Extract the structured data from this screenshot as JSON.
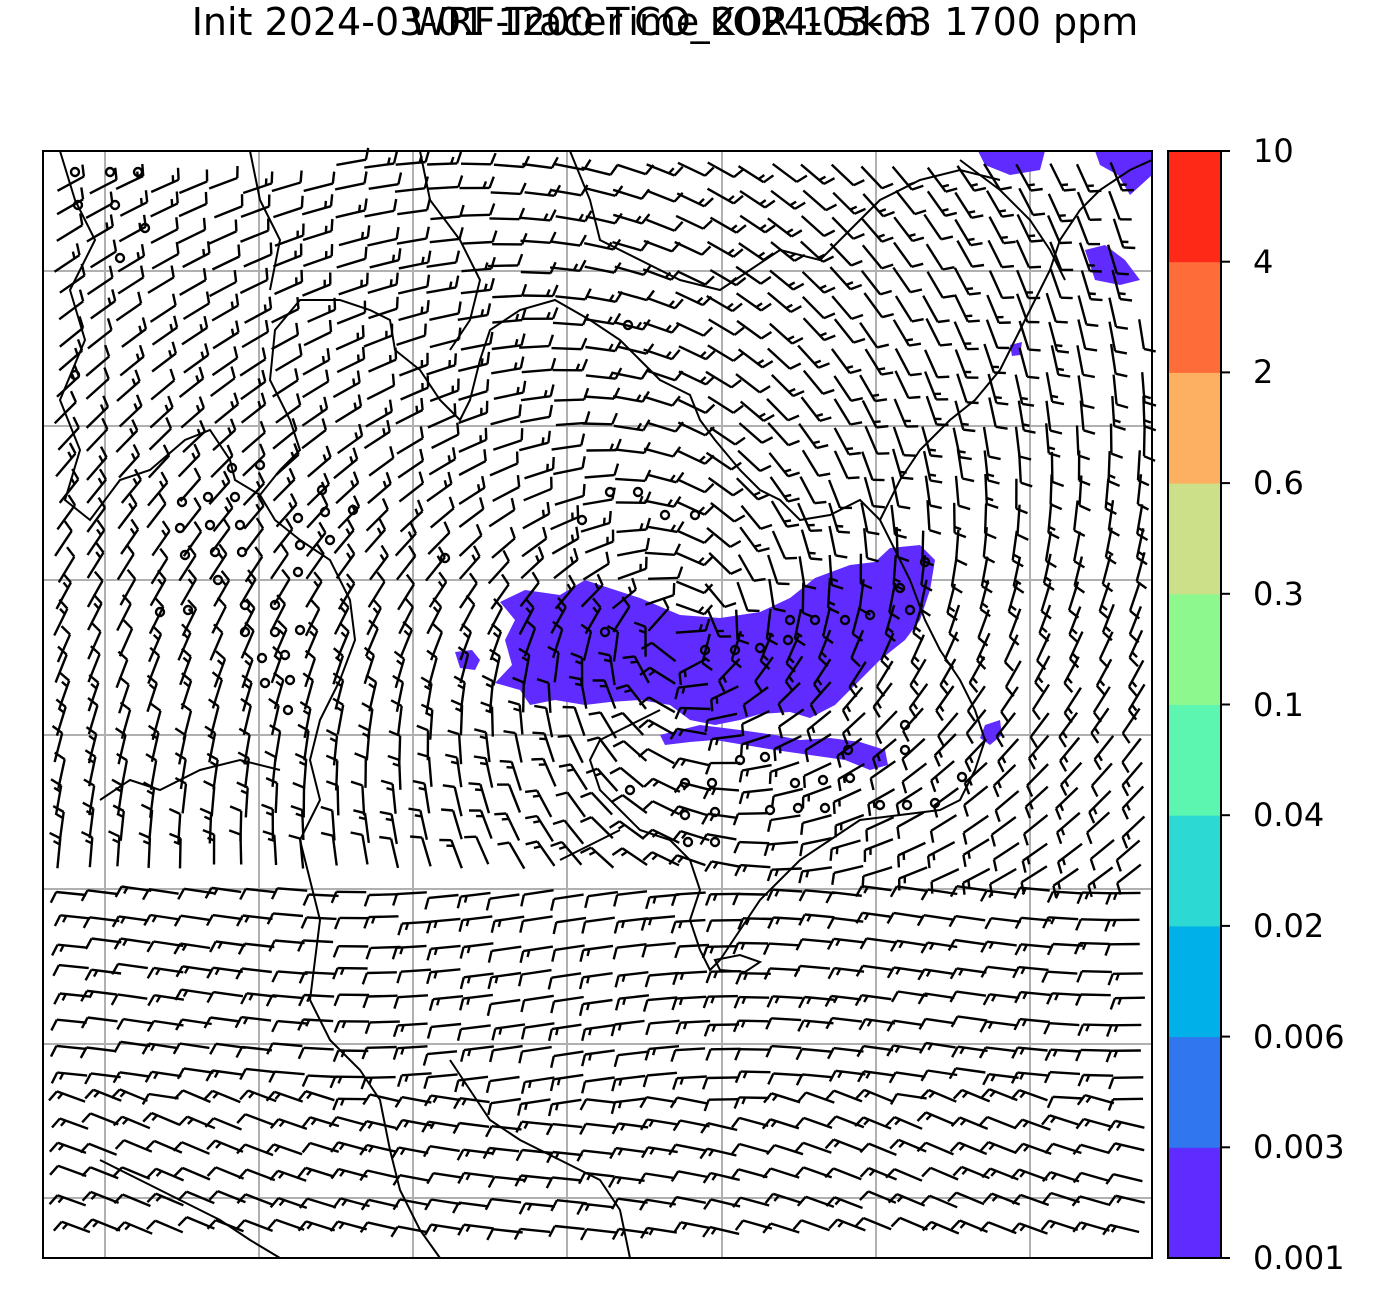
{
  "title": {
    "line1": "WRF-Tracer CO_KOR 1.5km",
    "line2": "Init 2024-03-01 1200 Time 2024-03-03 1700 ppm"
  },
  "colorbar": {
    "levels": [
      "0.001",
      "0.003",
      "0.006",
      "0.02",
      "0.04",
      "0.1",
      "0.3",
      "0.6",
      "2",
      "4",
      "10"
    ],
    "colors": [
      "#5f2bff",
      "#3076ee",
      "#00b0e9",
      "#2cd9d3",
      "#5cf6b1",
      "#8df88e",
      "#cce089",
      "#fdb061",
      "#fe6d39",
      "#fe2a17"
    ]
  },
  "map": {
    "plume_color": "#5f2bff",
    "gridline_color": "#b0b0b0",
    "barb_color": "#000000",
    "coastline_color": "#000000"
  }
}
